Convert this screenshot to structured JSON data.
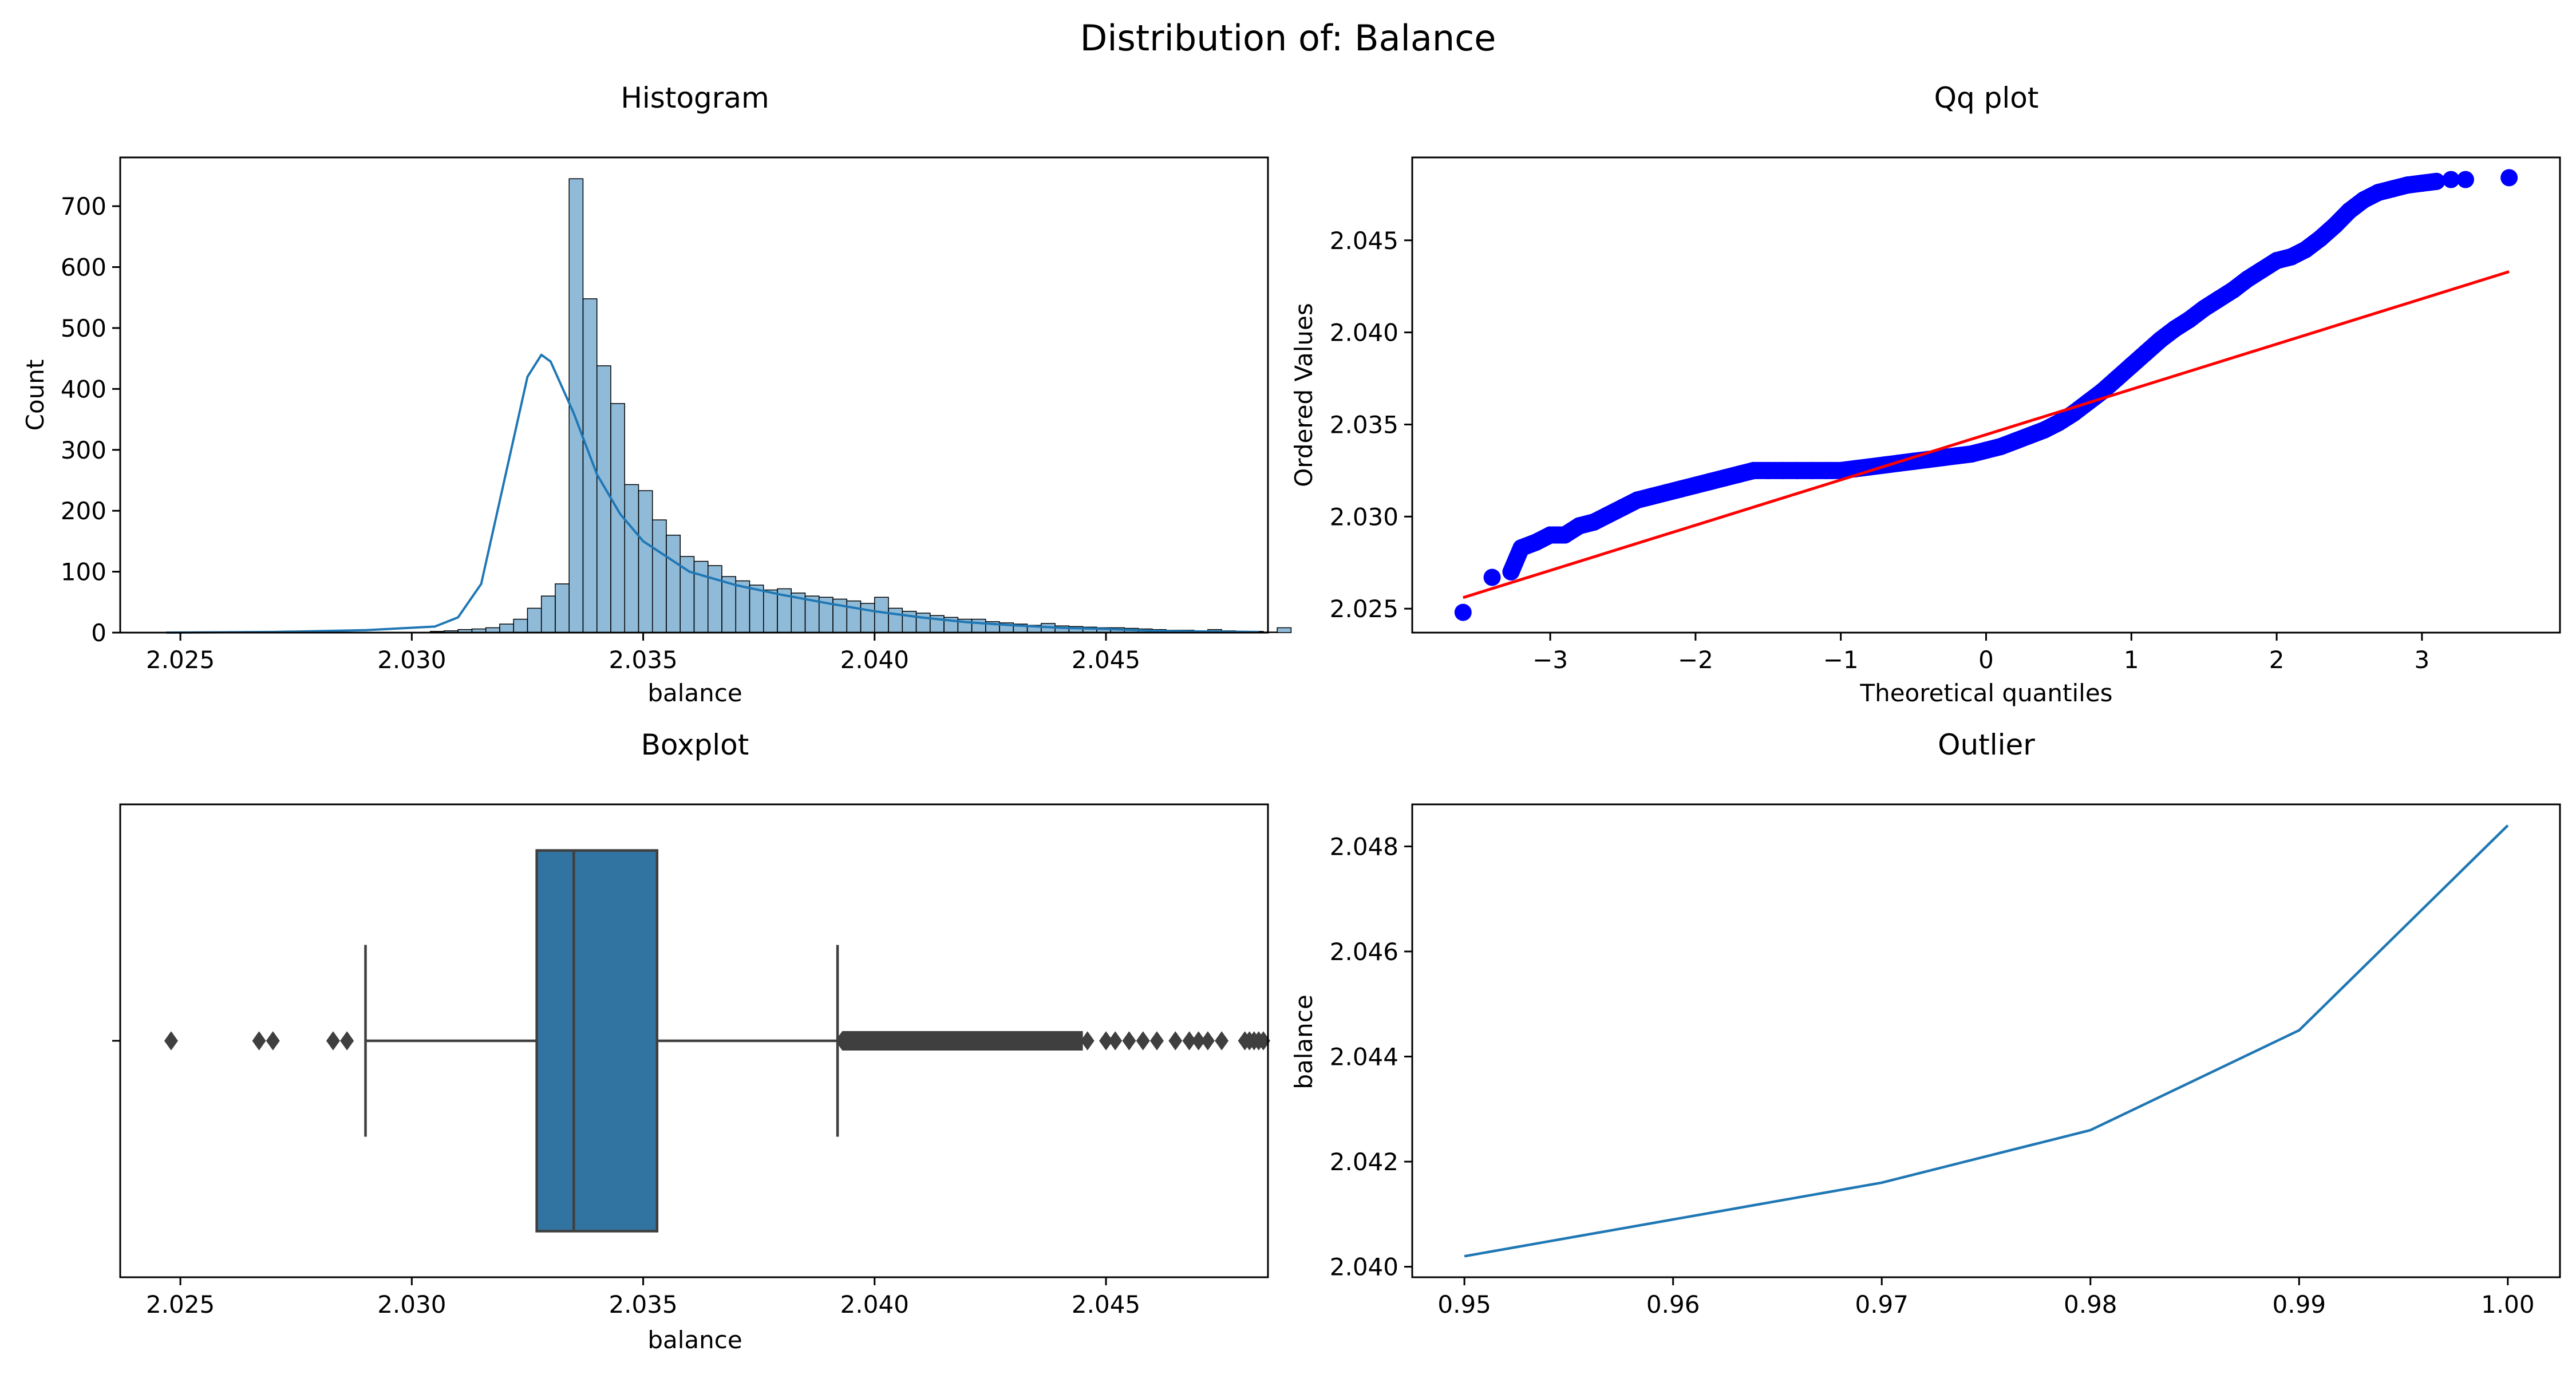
{
  "figure": {
    "suptitle": "Distribution of: Balance"
  },
  "chart_data": [
    {
      "type": "bar",
      "subtype": "histogram",
      "title": "Histogram",
      "xlabel": "balance",
      "ylabel": "Count",
      "xlim": [
        2.0237,
        2.0485
      ],
      "ylim": [
        0,
        780
      ],
      "xticks": [
        2.025,
        2.03,
        2.035,
        2.04,
        2.045
      ],
      "xtick_labels": [
        "2.025",
        "2.030",
        "2.035",
        "2.040",
        "2.045"
      ],
      "yticks": [
        0,
        100,
        200,
        300,
        400,
        500,
        600,
        700
      ],
      "ytick_labels": [
        "0",
        "100",
        "200",
        "300",
        "400",
        "500",
        "600",
        "700"
      ],
      "bin_start": 2.0247,
      "bin_width": 0.0003,
      "values": [
        1,
        0,
        0,
        0,
        0,
        0,
        0,
        0,
        0,
        0,
        0,
        0,
        0,
        0,
        0,
        0,
        0,
        0,
        0,
        2,
        3,
        5,
        6,
        8,
        14,
        22,
        40,
        60,
        80,
        745,
        548,
        438,
        376,
        243,
        233,
        185,
        160,
        125,
        117,
        110,
        92,
        85,
        78,
        70,
        72,
        65,
        60,
        58,
        55,
        52,
        48,
        58,
        40,
        35,
        32,
        28,
        25,
        22,
        22,
        18,
        16,
        14,
        12,
        15,
        11,
        10,
        9,
        8,
        8,
        7,
        6,
        5,
        4,
        4,
        3,
        5,
        3,
        2,
        2,
        1,
        8
      ],
      "kde": {
        "name": "kde",
        "x": [
          2.0247,
          2.027,
          2.029,
          2.0305,
          2.031,
          2.0315,
          2.032,
          2.0325,
          2.0328,
          2.033,
          2.0335,
          2.034,
          2.0345,
          2.035,
          2.036,
          2.037,
          2.038,
          2.039,
          2.04,
          2.041,
          2.042,
          2.043,
          2.044,
          2.045,
          2.046,
          2.047,
          2.0483
        ],
        "y": [
          0,
          1,
          4,
          10,
          25,
          80,
          250,
          420,
          456,
          445,
          360,
          260,
          195,
          150,
          100,
          78,
          62,
          48,
          35,
          25,
          17,
          12,
          8,
          6,
          3,
          2,
          1
        ]
      },
      "colors": {
        "bar_fill": "#1f77b4",
        "bar_opacity": 0.5,
        "kde_line": "#1f77b4"
      },
      "grid": false
    },
    {
      "type": "scatter",
      "subtype": "qq-plot",
      "title": "Qq plot",
      "xlabel": "Theoretical quantiles",
      "ylabel": "Ordered Values",
      "xlim": [
        -3.95,
        3.95
      ],
      "ylim": [
        2.0237,
        2.0495
      ],
      "xticks": [
        -3,
        -2,
        -1,
        0,
        1,
        2,
        3
      ],
      "xtick_labels": [
        "−3",
        "−2",
        "−1",
        "0",
        "1",
        "2",
        "3"
      ],
      "yticks": [
        2.025,
        2.03,
        2.035,
        2.04,
        2.045
      ],
      "ytick_labels": [
        "2.025",
        "2.030",
        "2.035",
        "2.040",
        "2.045"
      ],
      "series": [
        {
          "name": "ordered values",
          "x": [
            -3.6,
            -3.4,
            -3.27,
            -3.2,
            -3.1,
            -3.0,
            -2.9,
            -2.8,
            -2.7,
            -2.6,
            -2.5,
            -2.4,
            -2.3,
            -2.2,
            -2.1,
            -2.0,
            -1.9,
            -1.8,
            -1.7,
            -1.6,
            -1.5,
            -1.4,
            -1.3,
            -1.2,
            -1.1,
            -1.0,
            -0.9,
            -0.8,
            -0.7,
            -0.6,
            -0.5,
            -0.4,
            -0.3,
            -0.2,
            -0.1,
            0.0,
            0.1,
            0.2,
            0.3,
            0.4,
            0.5,
            0.6,
            0.7,
            0.8,
            0.9,
            1.0,
            1.1,
            1.2,
            1.3,
            1.4,
            1.5,
            1.6,
            1.7,
            1.8,
            1.9,
            2.0,
            2.1,
            2.2,
            2.3,
            2.4,
            2.5,
            2.6,
            2.7,
            2.8,
            2.9,
            3.0,
            3.1,
            3.2,
            3.3,
            3.6
          ],
          "y": [
            2.0248,
            2.0267,
            2.027,
            2.0283,
            2.0286,
            2.029,
            2.029,
            2.0295,
            2.0297,
            2.0301,
            2.0305,
            2.0309,
            2.0311,
            2.0313,
            2.0315,
            2.0317,
            2.0319,
            2.0321,
            2.0323,
            2.0325,
            2.0325,
            2.0325,
            2.0325,
            2.0325,
            2.0325,
            2.0325,
            2.0326,
            2.0327,
            2.0328,
            2.0329,
            2.033,
            2.0331,
            2.0332,
            2.0333,
            2.0334,
            2.0336,
            2.0338,
            2.0341,
            2.0344,
            2.0347,
            2.0351,
            2.0356,
            2.0362,
            2.0368,
            2.0375,
            2.0382,
            2.0389,
            2.0396,
            2.0402,
            2.0407,
            2.0413,
            2.0418,
            2.0423,
            2.0429,
            2.0434,
            2.0439,
            2.0441,
            2.0445,
            2.0451,
            2.0458,
            2.0466,
            2.0472,
            2.0476,
            2.0478,
            2.048,
            2.0481,
            2.0482,
            2.0483,
            2.0483,
            2.0484
          ]
        },
        {
          "name": "fit line",
          "x": [
            -3.6,
            3.6
          ],
          "y": [
            2.0256,
            2.0433
          ]
        }
      ],
      "colors": {
        "points": "#0000ff",
        "fit_line": "#ff0000"
      },
      "grid": false
    },
    {
      "type": "box",
      "title": "Boxplot",
      "xlabel": "balance",
      "xlim": [
        2.0237,
        2.0485
      ],
      "xticks": [
        2.025,
        2.03,
        2.035,
        2.04,
        2.045
      ],
      "xtick_labels": [
        "2.025",
        "2.030",
        "2.035",
        "2.040",
        "2.045"
      ],
      "whisker_low": 2.029,
      "q1": 2.0327,
      "median": 2.0335,
      "q3": 2.0353,
      "whisker_high": 2.0392,
      "outliers": [
        2.0248,
        2.0267,
        2.027,
        2.0283,
        2.0286,
        2.0393,
        2.0396,
        2.04,
        2.0403,
        2.0406,
        2.041,
        2.0413,
        2.0416,
        2.042,
        2.0423,
        2.0426,
        2.043,
        2.0433,
        2.0436,
        2.044,
        2.0443,
        2.0446,
        2.045,
        2.0452,
        2.0455,
        2.0458,
        2.0461,
        2.0465,
        2.0468,
        2.047,
        2.0472,
        2.0475,
        2.048,
        2.0481,
        2.0482,
        2.0483,
        2.0484
      ],
      "colors": {
        "box_fill": "#3274a1",
        "lines": "#3f3f3f"
      },
      "grid": false
    },
    {
      "type": "line",
      "title": "Outlier",
      "xlabel": "",
      "ylabel": "balance",
      "xlim": [
        0.9475,
        1.0025
      ],
      "ylim": [
        2.0398,
        2.0488
      ],
      "xticks": [
        0.95,
        0.96,
        0.97,
        0.98,
        0.99,
        1.0
      ],
      "xtick_labels": [
        "0.95",
        "0.96",
        "0.97",
        "0.98",
        "0.99",
        "1.00"
      ],
      "yticks": [
        2.04,
        2.042,
        2.044,
        2.046,
        2.048
      ],
      "ytick_labels": [
        "2.040",
        "2.042",
        "2.044",
        "2.046",
        "2.048"
      ],
      "x": [
        0.95,
        0.96,
        0.97,
        0.98,
        0.99,
        1.0
      ],
      "y": [
        2.0402,
        2.0409,
        2.0416,
        2.0426,
        2.0445,
        2.0484
      ],
      "colors": {
        "line": "#1f77b4"
      },
      "grid": false
    }
  ]
}
